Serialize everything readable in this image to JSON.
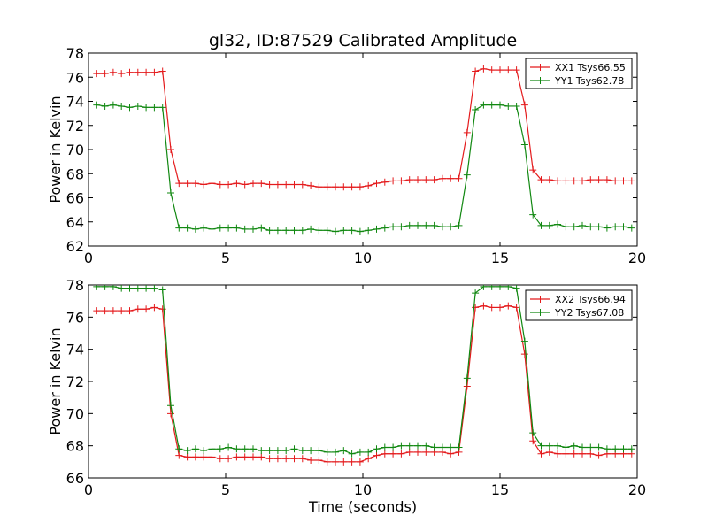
{
  "title": "gl32, ID:87529 Calibrated Amplitude",
  "chart_data": [
    {
      "type": "line",
      "title": "gl32, ID:87529 Calibrated Amplitude",
      "ylabel": "Power in Kelvin",
      "xlabel": "",
      "xlim": [
        0,
        20
      ],
      "ylim": [
        62,
        78
      ],
      "xticks": [
        0,
        5,
        10,
        15,
        20
      ],
      "yticks": [
        62,
        64,
        66,
        68,
        70,
        72,
        74,
        76,
        78
      ],
      "grid": false,
      "legend_position": "top-right",
      "x": [
        0.3,
        0.6,
        0.9,
        1.2,
        1.5,
        1.8,
        2.1,
        2.4,
        2.7,
        3.0,
        3.3,
        3.6,
        3.9,
        4.2,
        4.5,
        4.8,
        5.1,
        5.4,
        5.7,
        6.0,
        6.3,
        6.6,
        6.9,
        7.2,
        7.5,
        7.8,
        8.1,
        8.4,
        8.7,
        9.0,
        9.3,
        9.6,
        9.9,
        10.2,
        10.5,
        10.8,
        11.1,
        11.4,
        11.7,
        12.0,
        12.3,
        12.6,
        12.9,
        13.2,
        13.5,
        13.8,
        14.1,
        14.4,
        14.7,
        15.0,
        15.3,
        15.6,
        15.9,
        16.2,
        16.5,
        16.8,
        17.1,
        17.4,
        17.7,
        18.0,
        18.3,
        18.6,
        18.9,
        19.2,
        19.5,
        19.8
      ],
      "series": [
        {
          "name": "XX1 Tsys66.55",
          "color": "#e41a1c",
          "values": [
            76.3,
            76.3,
            76.4,
            76.3,
            76.4,
            76.4,
            76.4,
            76.4,
            76.5,
            70.0,
            67.2,
            67.2,
            67.2,
            67.1,
            67.2,
            67.1,
            67.1,
            67.2,
            67.1,
            67.2,
            67.2,
            67.1,
            67.1,
            67.1,
            67.1,
            67.1,
            67.0,
            66.9,
            66.9,
            66.9,
            66.9,
            66.9,
            66.9,
            67.0,
            67.2,
            67.3,
            67.4,
            67.4,
            67.5,
            67.5,
            67.5,
            67.5,
            67.6,
            67.6,
            67.6,
            71.4,
            76.5,
            76.7,
            76.6,
            76.6,
            76.6,
            76.6,
            73.7,
            68.3,
            67.5,
            67.5,
            67.4,
            67.4,
            67.4,
            67.4,
            67.5,
            67.5,
            67.5,
            67.4,
            67.4,
            67.4
          ]
        },
        {
          "name": "YY1 Tsys62.78",
          "color": "#118811",
          "values": [
            73.7,
            73.6,
            73.7,
            73.6,
            73.5,
            73.6,
            73.5,
            73.5,
            73.5,
            66.4,
            63.5,
            63.5,
            63.4,
            63.5,
            63.4,
            63.5,
            63.5,
            63.5,
            63.4,
            63.4,
            63.5,
            63.3,
            63.3,
            63.3,
            63.3,
            63.3,
            63.4,
            63.3,
            63.3,
            63.2,
            63.3,
            63.3,
            63.2,
            63.3,
            63.4,
            63.5,
            63.6,
            63.6,
            63.7,
            63.7,
            63.7,
            63.7,
            63.6,
            63.6,
            63.7,
            67.9,
            73.3,
            73.7,
            73.7,
            73.7,
            73.6,
            73.6,
            70.4,
            64.6,
            63.7,
            63.7,
            63.8,
            63.6,
            63.6,
            63.7,
            63.6,
            63.6,
            63.5,
            63.6,
            63.6,
            63.5
          ]
        }
      ]
    },
    {
      "type": "line",
      "title": "",
      "ylabel": "Power in Kelvin",
      "xlabel": "Time (seconds)",
      "xlim": [
        0,
        20
      ],
      "ylim": [
        66,
        78
      ],
      "xticks": [
        0,
        5,
        10,
        15,
        20
      ],
      "yticks": [
        66,
        68,
        70,
        72,
        74,
        76,
        78
      ],
      "grid": false,
      "legend_position": "top-right",
      "x": [
        0.3,
        0.6,
        0.9,
        1.2,
        1.5,
        1.8,
        2.1,
        2.4,
        2.7,
        3.0,
        3.3,
        3.6,
        3.9,
        4.2,
        4.5,
        4.8,
        5.1,
        5.4,
        5.7,
        6.0,
        6.3,
        6.6,
        6.9,
        7.2,
        7.5,
        7.8,
        8.1,
        8.4,
        8.7,
        9.0,
        9.3,
        9.6,
        9.9,
        10.2,
        10.5,
        10.8,
        11.1,
        11.4,
        11.7,
        12.0,
        12.3,
        12.6,
        12.9,
        13.2,
        13.5,
        13.8,
        14.1,
        14.4,
        14.7,
        15.0,
        15.3,
        15.6,
        15.9,
        16.2,
        16.5,
        16.8,
        17.1,
        17.4,
        17.7,
        18.0,
        18.3,
        18.6,
        18.9,
        19.2,
        19.5,
        19.8
      ],
      "series": [
        {
          "name": "XX2 Tsys66.94",
          "color": "#e41a1c",
          "values": [
            76.4,
            76.4,
            76.4,
            76.4,
            76.4,
            76.5,
            76.5,
            76.6,
            76.5,
            70.0,
            67.4,
            67.3,
            67.3,
            67.3,
            67.3,
            67.2,
            67.2,
            67.3,
            67.3,
            67.3,
            67.3,
            67.2,
            67.2,
            67.2,
            67.2,
            67.2,
            67.1,
            67.1,
            67.0,
            67.0,
            67.0,
            67.0,
            67.0,
            67.2,
            67.4,
            67.5,
            67.5,
            67.5,
            67.6,
            67.6,
            67.6,
            67.6,
            67.6,
            67.5,
            67.6,
            71.7,
            76.6,
            76.7,
            76.6,
            76.6,
            76.7,
            76.6,
            73.7,
            68.3,
            67.5,
            67.6,
            67.5,
            67.5,
            67.5,
            67.5,
            67.5,
            67.4,
            67.5,
            67.5,
            67.5,
            67.5
          ]
        },
        {
          "name": "YY2 Tsys67.08",
          "color": "#118811",
          "values": [
            77.9,
            77.9,
            77.9,
            77.8,
            77.8,
            77.8,
            77.8,
            77.8,
            77.7,
            70.5,
            67.8,
            67.7,
            67.8,
            67.7,
            67.8,
            67.8,
            67.9,
            67.8,
            67.8,
            67.8,
            67.7,
            67.7,
            67.7,
            67.7,
            67.8,
            67.7,
            67.7,
            67.7,
            67.6,
            67.6,
            67.7,
            67.5,
            67.6,
            67.6,
            67.8,
            67.9,
            67.9,
            68.0,
            68.0,
            68.0,
            68.0,
            67.9,
            67.9,
            67.9,
            67.9,
            72.2,
            77.5,
            77.9,
            77.9,
            77.9,
            77.9,
            77.8,
            74.5,
            68.8,
            68.0,
            68.0,
            68.0,
            67.9,
            68.0,
            67.9,
            67.9,
            67.9,
            67.8,
            67.8,
            67.8,
            67.8
          ]
        }
      ]
    }
  ]
}
